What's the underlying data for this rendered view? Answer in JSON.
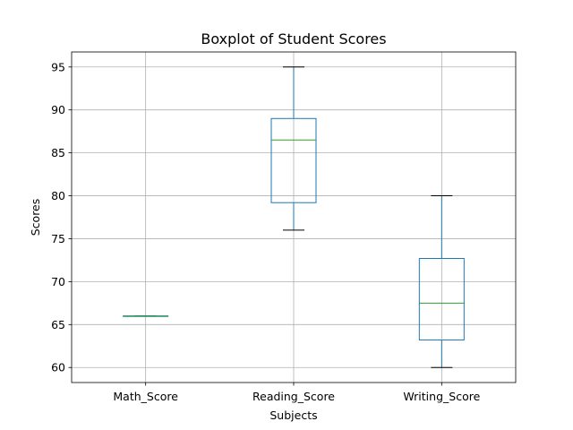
{
  "chart_data": {
    "type": "boxplot",
    "title": "Boxplot of Student Scores",
    "xlabel": "Subjects",
    "ylabel": "Scores",
    "categories": [
      "Math_Score",
      "Reading_Score",
      "Writing_Score"
    ],
    "boxes": [
      {
        "name": "Math_Score",
        "whisker_low": 66,
        "q1": 66,
        "median": 66,
        "q3": 66,
        "whisker_high": 66
      },
      {
        "name": "Reading_Score",
        "whisker_low": 76,
        "q1": 79.2,
        "median": 86.5,
        "q3": 89,
        "whisker_high": 95
      },
      {
        "name": "Writing_Score",
        "whisker_low": 60,
        "q1": 63.2,
        "median": 67.5,
        "q3": 72.7,
        "whisker_high": 80
      }
    ],
    "yticks": [
      60,
      65,
      70,
      75,
      80,
      85,
      90,
      95
    ],
    "ylim": [
      58.25,
      96.75
    ],
    "grid": true,
    "colors": {
      "box": "#1f77b4",
      "median": "#2ca02c",
      "whisker_cap": "#000000",
      "grid": "#b0b0b0"
    }
  }
}
